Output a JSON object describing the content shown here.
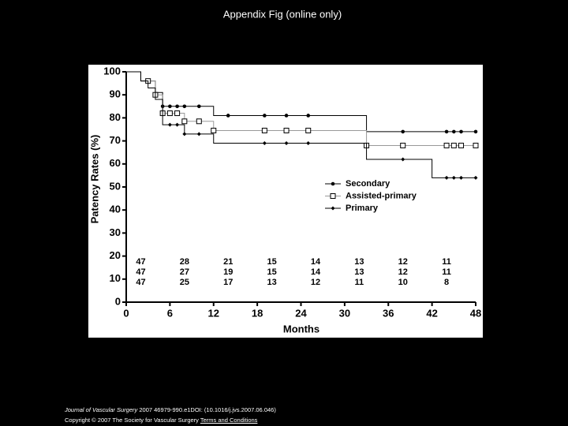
{
  "chart_data": {
    "type": "step",
    "title": "Appendix Fig (online only)",
    "xlabel": "Months",
    "ylabel": "Patency Rates (%)",
    "xlim": [
      0,
      48
    ],
    "xticks": [
      0,
      6,
      12,
      18,
      24,
      30,
      36,
      42,
      48
    ],
    "ylim": [
      0,
      100
    ],
    "yticks": [
      0,
      10,
      20,
      30,
      40,
      50,
      60,
      70,
      80,
      90,
      100
    ],
    "at_risk_x": [
      2,
      8,
      14,
      20,
      26,
      32,
      38,
      44
    ],
    "series": [
      {
        "name": "Secondary",
        "color": "#000000",
        "marker": "circle",
        "x": [
          0,
          2,
          4,
          5,
          12,
          33,
          48
        ],
        "values": [
          100,
          96,
          91,
          85,
          81,
          74,
          74
        ],
        "censored_x": [
          5,
          6,
          7,
          8,
          10,
          14,
          19,
          22,
          25,
          38,
          44,
          45,
          46,
          48
        ],
        "at_risk": [
          47,
          28,
          21,
          15,
          14,
          13,
          12,
          11
        ]
      },
      {
        "name": "Assisted-primary",
        "color": "#999999",
        "marker": "square",
        "x": [
          0,
          2,
          4,
          5,
          8,
          12,
          33,
          48
        ],
        "values": [
          100,
          96,
          90,
          82,
          78.5,
          74.5,
          68,
          68
        ],
        "censored_x": [
          3,
          4,
          5,
          6,
          7,
          8,
          10,
          12,
          19,
          22,
          25,
          33,
          38,
          44,
          45,
          46,
          48
        ],
        "at_risk": [
          47,
          27,
          19,
          15,
          14,
          13,
          12,
          11
        ]
      },
      {
        "name": "Primary",
        "color": "#000000",
        "marker": "diamond",
        "x": [
          0,
          2,
          3,
          4,
          5,
          8,
          12,
          33,
          42,
          48
        ],
        "values": [
          100,
          96,
          93,
          88,
          77,
          73,
          69,
          62,
          54,
          54
        ],
        "censored_x": [
          6,
          7,
          8,
          10,
          19,
          22,
          25,
          38,
          44,
          45,
          46,
          48
        ],
        "at_risk": [
          47,
          25,
          17,
          13,
          12,
          11,
          10,
          8
        ]
      }
    ]
  },
  "footer": {
    "journal": "Journal of Vascular Surgery",
    "citation": " 2007 46979-990.e1DOI: (10.1016/j.jvs.2007.06.046)",
    "copyright": "Copyright © 2007 The Society for Vascular Surgery",
    "link": "Terms and Conditions"
  }
}
